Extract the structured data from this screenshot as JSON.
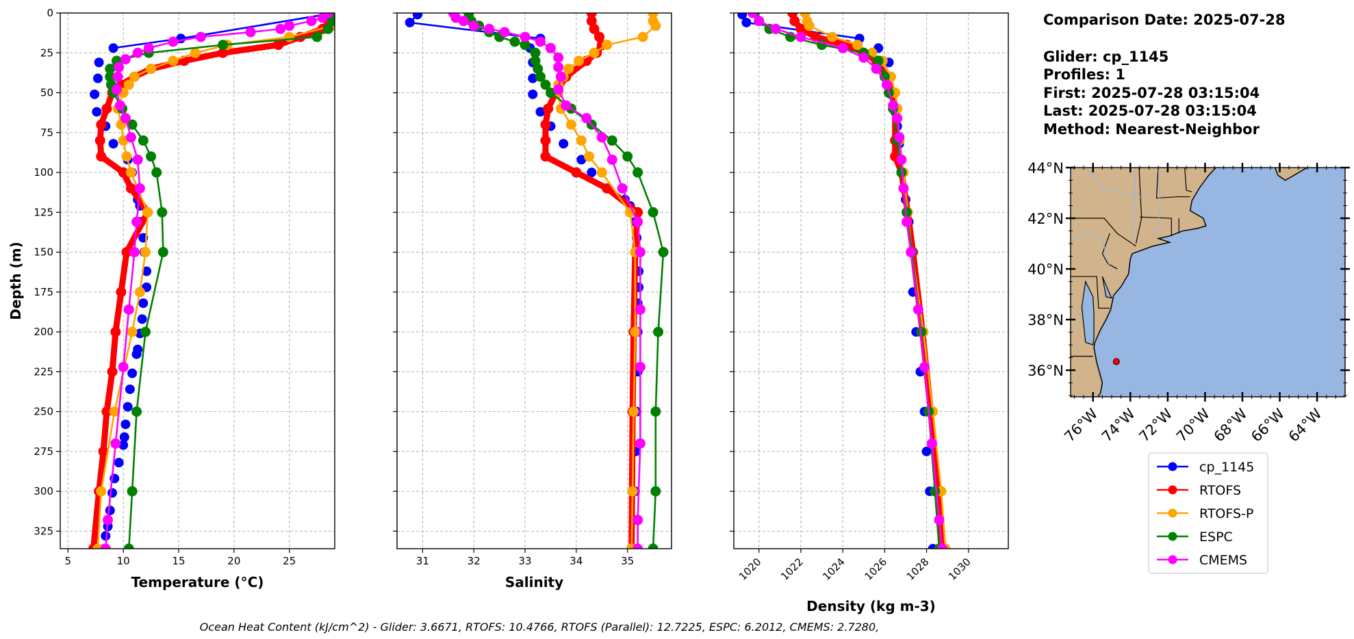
{
  "info": {
    "comparison_date": "Comparison Date: 2025-07-28",
    "glider": "Glider: cp_1145",
    "profiles": "Profiles: 1",
    "first": "First: 2025-07-28 03:15:04",
    "last": "Last: 2025-07-28 03:15:04",
    "method": "Method: Nearest-Neighbor"
  },
  "footer": "Ocean Heat Content (kJ/cm^2) - Glider: 3.6671,  RTOFS: 10.4766,  RTOFS (Parallel): 12.7225,  ESPC: 6.2012,  CMEMS: 2.7280,",
  "legend": [
    {
      "name": "cp_1145",
      "color": "#0000ff"
    },
    {
      "name": "RTOFS",
      "color": "#ff0000"
    },
    {
      "name": "RTOFS-P",
      "color": "#ffa500"
    },
    {
      "name": "ESPC",
      "color": "#008000"
    },
    {
      "name": "CMEMS",
      "color": "#ff00ff"
    }
  ],
  "chart_data": [
    {
      "type": "line",
      "xlabel": "Temperature (°C)",
      "ylabel": "Depth (m)",
      "xlim": [
        4.3,
        29.1
      ],
      "ylim": [
        0,
        336
      ],
      "y_inverted": true,
      "grid": true,
      "xticks": [
        "5",
        "10",
        "15",
        "20",
        "25"
      ],
      "yticks": [
        "0",
        "25",
        "50",
        "75",
        "100",
        "125",
        "150",
        "175",
        "200",
        "225",
        "250",
        "275",
        "300",
        "325"
      ],
      "series": [
        {
          "name": "cp_1145",
          "color": "#0000ff",
          "depth": [
            1,
            16,
            22,
            31,
            41,
            51,
            62,
            71,
            82,
            92,
            100,
            117,
            121,
            131,
            141,
            150,
            162,
            172,
            182,
            192,
            201,
            211,
            214,
            226,
            236,
            247,
            258,
            266,
            271,
            282,
            292,
            301,
            312,
            322,
            328,
            336
          ],
          "values": [
            28.2,
            15.2,
            9.1,
            7.8,
            7.7,
            7.4,
            7.6,
            8.4,
            9.1,
            10.4,
            10.8,
            11.3,
            11.5,
            11.6,
            11.8,
            11.9,
            12.1,
            12.1,
            11.8,
            11.7,
            11.5,
            11.3,
            11.2,
            10.8,
            10.6,
            10.4,
            10.2,
            10.1,
            10.0,
            9.6,
            9.2,
            9.0,
            8.8,
            8.6,
            8.4,
            8.3
          ]
        },
        {
          "name": "RTOFS",
          "color": "#ff0000",
          "depth": [
            0,
            5,
            10,
            15,
            20,
            25,
            30,
            35,
            40,
            45,
            50,
            60,
            70,
            80,
            90,
            100,
            110,
            125,
            150,
            175,
            200,
            225,
            250,
            275,
            300,
            336
          ],
          "values": [
            29.0,
            28.7,
            28.0,
            26.0,
            24.0,
            19.0,
            15.5,
            12.5,
            11.0,
            9.8,
            9.0,
            8.5,
            8.0,
            7.9,
            8.0,
            10.0,
            10.7,
            12.2,
            10.3,
            9.8,
            9.3,
            9.0,
            8.5,
            8.2,
            7.8,
            7.3
          ]
        },
        {
          "name": "RTOFS-P",
          "color": "#ffa500",
          "depth": [
            0,
            5,
            8,
            15,
            20,
            25,
            30,
            35,
            40,
            45,
            50,
            60,
            70,
            80,
            90,
            100,
            125,
            150,
            175,
            200,
            250,
            300,
            336
          ],
          "values": [
            29.1,
            29.0,
            28.9,
            25.0,
            19.4,
            16.5,
            14.5,
            12.5,
            11.0,
            10.5,
            10.0,
            9.5,
            9.8,
            10.0,
            10.3,
            10.7,
            12.2,
            12.0,
            11.5,
            10.8,
            9.2,
            8.0,
            7.7
          ]
        },
        {
          "name": "ESPC",
          "color": "#008000",
          "depth": [
            0,
            5,
            10,
            15,
            20,
            25,
            30,
            35,
            40,
            45,
            50,
            60,
            70,
            80,
            90,
            100,
            125,
            150,
            200,
            250,
            300,
            336
          ],
          "values": [
            29.0,
            28.9,
            28.5,
            27.5,
            19.0,
            12.3,
            9.4,
            8.8,
            8.8,
            8.9,
            9.1,
            9.9,
            10.8,
            11.8,
            12.5,
            13.0,
            13.5,
            13.6,
            12.0,
            11.2,
            10.8,
            10.5
          ]
        },
        {
          "name": "CMEMS",
          "color": "#ff00ff",
          "depth": [
            0,
            3,
            5,
            8,
            10,
            12,
            15,
            18,
            22,
            25,
            29,
            34,
            40,
            48,
            58,
            66,
            78,
            92,
            110,
            131,
            150,
            186,
            222,
            270,
            318,
            336
          ],
          "values": [
            28.5,
            28.0,
            27.0,
            25.0,
            24.2,
            21.5,
            17.0,
            14.5,
            12.3,
            11.3,
            10.2,
            9.6,
            9.5,
            9.4,
            9.7,
            10.2,
            10.7,
            11.3,
            11.5,
            11.2,
            11.0,
            10.5,
            10.0,
            9.3,
            8.6,
            8.4
          ]
        }
      ]
    },
    {
      "type": "line",
      "xlabel": "Salinity",
      "xlim": [
        30.5,
        35.86
      ],
      "ylim": [
        0,
        336
      ],
      "y_inverted": true,
      "grid": true,
      "xticks": [
        "31",
        "32",
        "33",
        "34",
        "35"
      ],
      "series": [
        {
          "name": "cp_1145",
          "color": "#0000ff",
          "depth": [
            1,
            6,
            16,
            22,
            31,
            41,
            51,
            62,
            71,
            82,
            92,
            100,
            117,
            121,
            131,
            141,
            150,
            162,
            172,
            182,
            200,
            225,
            250,
            275,
            300,
            336
          ],
          "values": [
            30.9,
            30.75,
            33.3,
            33.1,
            33.15,
            33.15,
            33.15,
            33.3,
            33.5,
            33.75,
            34.1,
            34.3,
            34.95,
            35.05,
            35.15,
            35.18,
            35.2,
            35.22,
            35.22,
            35.2,
            35.2,
            35.2,
            35.18,
            35.16,
            35.15,
            35.12
          ]
        },
        {
          "name": "RTOFS",
          "color": "#ff0000",
          "depth": [
            0,
            5,
            10,
            15,
            20,
            25,
            30,
            40,
            50,
            60,
            70,
            80,
            90,
            100,
            110,
            125,
            150,
            200,
            250,
            336
          ],
          "values": [
            34.3,
            34.3,
            34.35,
            34.45,
            34.5,
            34.4,
            34.2,
            33.8,
            33.6,
            33.45,
            33.4,
            33.4,
            33.4,
            34.0,
            34.6,
            35.2,
            35.15,
            35.12,
            35.1,
            35.08
          ]
        },
        {
          "name": "RTOFS-P",
          "color": "#ffa500",
          "depth": [
            0,
            5,
            8,
            15,
            20,
            25,
            30,
            35,
            40,
            45,
            50,
            60,
            70,
            80,
            90,
            100,
            125,
            150,
            200,
            250,
            300,
            336
          ],
          "values": [
            35.5,
            35.5,
            35.55,
            35.3,
            34.6,
            34.35,
            34.05,
            33.85,
            33.75,
            33.65,
            33.65,
            33.7,
            33.9,
            34.1,
            34.25,
            34.5,
            35.05,
            35.15,
            35.15,
            35.12,
            35.1,
            35.08
          ]
        },
        {
          "name": "ESPC",
          "color": "#008000",
          "depth": [
            0,
            3,
            5,
            8,
            12,
            15,
            18,
            20,
            25,
            30,
            35,
            40,
            45,
            50,
            60,
            70,
            80,
            90,
            100,
            125,
            150,
            200,
            250,
            300,
            336
          ],
          "values": [
            31.9,
            31.9,
            31.95,
            32.1,
            32.3,
            32.5,
            32.8,
            33.0,
            33.2,
            33.2,
            33.25,
            33.3,
            33.4,
            33.5,
            33.9,
            34.3,
            34.7,
            35.0,
            35.2,
            35.5,
            35.7,
            35.6,
            35.55,
            35.55,
            35.5
          ]
        },
        {
          "name": "CMEMS",
          "color": "#ff00ff",
          "depth": [
            0,
            3,
            5,
            8,
            10,
            12,
            15,
            18,
            22,
            28,
            34,
            40,
            48,
            58,
            66,
            78,
            92,
            110,
            131,
            150,
            186,
            222,
            270,
            318,
            336
          ],
          "values": [
            31.6,
            31.65,
            31.8,
            32.0,
            32.3,
            32.6,
            33.0,
            33.3,
            33.5,
            33.65,
            33.65,
            33.7,
            33.65,
            33.8,
            34.2,
            34.5,
            34.7,
            34.9,
            35.2,
            35.25,
            35.25,
            35.25,
            35.25,
            35.2,
            35.2
          ]
        }
      ]
    },
    {
      "type": "line",
      "xlabel": "Density (kg m-3)",
      "xlim": [
        1018.8,
        1031.9
      ],
      "ylim": [
        0,
        336
      ],
      "y_inverted": true,
      "grid": true,
      "xticks": [
        "1020",
        "1022",
        "1024",
        "1026",
        "1028",
        "1030"
      ],
      "series": [
        {
          "name": "cp_1145",
          "color": "#0000ff",
          "depth": [
            1,
            6,
            16,
            22,
            31,
            41,
            51,
            62,
            71,
            82,
            92,
            100,
            117,
            131,
            150,
            175,
            200,
            225,
            250,
            275,
            300,
            336
          ],
          "values": [
            1019.2,
            1019.4,
            1024.8,
            1025.7,
            1026.2,
            1026.2,
            1026.3,
            1026.5,
            1026.6,
            1026.7,
            1026.8,
            1026.9,
            1027.0,
            1027.15,
            1027.25,
            1027.35,
            1027.5,
            1027.7,
            1027.9,
            1028.0,
            1028.15,
            1028.3
          ]
        },
        {
          "name": "RTOFS",
          "color": "#ff0000",
          "depth": [
            0,
            5,
            10,
            15,
            20,
            25,
            30,
            40,
            50,
            60,
            80,
            90,
            100,
            125,
            150,
            200,
            250,
            300,
            336
          ],
          "values": [
            1021.6,
            1021.7,
            1022.0,
            1022.7,
            1024.2,
            1025.0,
            1025.6,
            1026.1,
            1026.4,
            1026.5,
            1026.5,
            1026.5,
            1026.8,
            1027.1,
            1027.35,
            1027.8,
            1028.2,
            1028.55,
            1028.8
          ]
        },
        {
          "name": "RTOFS-P",
          "color": "#ffa500",
          "depth": [
            0,
            5,
            8,
            15,
            20,
            25,
            30,
            40,
            50,
            60,
            80,
            100,
            125,
            150,
            200,
            250,
            300,
            336
          ],
          "values": [
            1022.2,
            1022.3,
            1022.4,
            1023.5,
            1024.7,
            1025.4,
            1025.9,
            1026.3,
            1026.5,
            1026.6,
            1026.7,
            1026.9,
            1027.1,
            1027.3,
            1027.85,
            1028.3,
            1028.7,
            1028.9
          ]
        },
        {
          "name": "ESPC",
          "color": "#008000",
          "depth": [
            0,
            5,
            10,
            15,
            20,
            25,
            30,
            40,
            50,
            60,
            80,
            100,
            125,
            150,
            200,
            250,
            300,
            336
          ],
          "values": [
            1019.8,
            1020.0,
            1020.5,
            1021.5,
            1023.0,
            1025.0,
            1025.7,
            1026.0,
            1026.2,
            1026.4,
            1026.6,
            1026.8,
            1027.05,
            1027.3,
            1027.75,
            1028.1,
            1028.4,
            1028.6
          ]
        },
        {
          "name": "CMEMS",
          "color": "#ff00ff",
          "depth": [
            0,
            5,
            10,
            15,
            22,
            28,
            35,
            45,
            58,
            66,
            78,
            92,
            110,
            131,
            150,
            186,
            222,
            270,
            318,
            336
          ],
          "values": [
            1019.7,
            1020.0,
            1020.8,
            1022.0,
            1024.0,
            1025.0,
            1025.6,
            1026.1,
            1026.4,
            1026.6,
            1026.7,
            1026.8,
            1026.9,
            1027.05,
            1027.25,
            1027.6,
            1027.9,
            1028.25,
            1028.6,
            1028.75
          ]
        }
      ]
    }
  ],
  "map": {
    "lon_range": [
      -77.2,
      -62.5
    ],
    "lat_range": [
      34.95,
      44
    ],
    "lat_ticks": [
      "36°N",
      "38°N",
      "40°N",
      "42°N",
      "44°N"
    ],
    "lon_ticks": [
      "76°W",
      "74°W",
      "72°W",
      "70°W",
      "68°W",
      "66°W",
      "64°W"
    ],
    "glider_position": {
      "lon": -74.75,
      "lat": 36.34
    },
    "land_color": "#d2b48c",
    "ocean_color": "#97b6e1",
    "marker_color": "#ff0000"
  }
}
